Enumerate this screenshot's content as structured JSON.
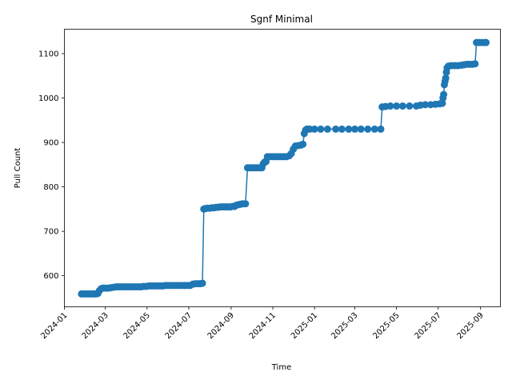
{
  "chart_data": {
    "type": "line",
    "title": "Sgnf Minimal",
    "xlabel": "Time",
    "ylabel": "Pull Count",
    "x_type": "date",
    "xlim": [
      "2024-01-01",
      "2025-09-30"
    ],
    "ylim": [
      530,
      1155
    ],
    "x_ticks": [
      "2024-01",
      "2024-03",
      "2024-05",
      "2024-07",
      "2024-09",
      "2024-11",
      "2025-01",
      "2025-03",
      "2025-05",
      "2025-07",
      "2025-09"
    ],
    "y_ticks": [
      600,
      700,
      800,
      900,
      1000,
      1100
    ],
    "grid": false,
    "legend": "none",
    "markers": true,
    "series": [
      {
        "color": "#1f77b4",
        "points": [
          [
            "2024-01-26",
            559
          ],
          [
            "2024-01-29",
            559
          ],
          [
            "2024-02-01",
            559
          ],
          [
            "2024-02-04",
            559
          ],
          [
            "2024-02-07",
            559
          ],
          [
            "2024-02-10",
            559
          ],
          [
            "2024-02-13",
            559
          ],
          [
            "2024-02-16",
            559
          ],
          [
            "2024-02-19",
            560
          ],
          [
            "2024-02-21",
            566
          ],
          [
            "2024-02-24",
            571
          ],
          [
            "2024-02-27",
            572
          ],
          [
            "2024-03-01",
            572
          ],
          [
            "2024-03-05",
            572
          ],
          [
            "2024-03-09",
            573
          ],
          [
            "2024-03-13",
            574
          ],
          [
            "2024-03-17",
            575
          ],
          [
            "2024-03-21",
            575
          ],
          [
            "2024-03-25",
            575
          ],
          [
            "2024-03-29",
            575
          ],
          [
            "2024-04-02",
            575
          ],
          [
            "2024-04-06",
            575
          ],
          [
            "2024-04-10",
            575
          ],
          [
            "2024-04-14",
            575
          ],
          [
            "2024-04-18",
            575
          ],
          [
            "2024-04-22",
            575
          ],
          [
            "2024-04-26",
            576
          ],
          [
            "2024-04-30",
            576
          ],
          [
            "2024-05-04",
            577
          ],
          [
            "2024-05-08",
            577
          ],
          [
            "2024-05-12",
            577
          ],
          [
            "2024-05-16",
            577
          ],
          [
            "2024-05-20",
            577
          ],
          [
            "2024-05-24",
            577
          ],
          [
            "2024-05-28",
            578
          ],
          [
            "2024-06-01",
            578
          ],
          [
            "2024-06-05",
            578
          ],
          [
            "2024-06-09",
            578
          ],
          [
            "2024-06-13",
            578
          ],
          [
            "2024-06-17",
            578
          ],
          [
            "2024-06-21",
            578
          ],
          [
            "2024-06-25",
            578
          ],
          [
            "2024-06-29",
            578
          ],
          [
            "2024-07-03",
            578
          ],
          [
            "2024-07-07",
            581
          ],
          [
            "2024-07-11",
            582
          ],
          [
            "2024-07-15",
            582
          ],
          [
            "2024-07-18",
            582
          ],
          [
            "2024-07-21",
            583
          ],
          [
            "2024-07-23",
            750
          ],
          [
            "2024-07-25",
            751
          ],
          [
            "2024-07-28",
            752
          ],
          [
            "2024-08-01",
            752
          ],
          [
            "2024-08-04",
            753
          ],
          [
            "2024-08-07",
            753
          ],
          [
            "2024-08-10",
            754
          ],
          [
            "2024-08-13",
            754
          ],
          [
            "2024-08-16",
            755
          ],
          [
            "2024-08-19",
            755
          ],
          [
            "2024-08-22",
            755
          ],
          [
            "2024-08-25",
            755
          ],
          [
            "2024-08-28",
            755
          ],
          [
            "2024-08-31",
            755
          ],
          [
            "2024-09-03",
            756
          ],
          [
            "2024-09-06",
            756
          ],
          [
            "2024-09-09",
            759
          ],
          [
            "2024-09-12",
            760
          ],
          [
            "2024-09-15",
            761
          ],
          [
            "2024-09-18",
            762
          ],
          [
            "2024-09-22",
            762
          ],
          [
            "2024-09-25",
            843
          ],
          [
            "2024-09-28",
            843
          ],
          [
            "2024-10-01",
            843
          ],
          [
            "2024-10-04",
            843
          ],
          [
            "2024-10-07",
            843
          ],
          [
            "2024-10-10",
            843
          ],
          [
            "2024-10-13",
            843
          ],
          [
            "2024-10-16",
            843
          ],
          [
            "2024-10-18",
            852
          ],
          [
            "2024-10-20",
            856
          ],
          [
            "2024-10-22",
            857
          ],
          [
            "2024-10-24",
            868
          ],
          [
            "2024-10-28",
            868
          ],
          [
            "2024-11-01",
            868
          ],
          [
            "2024-11-05",
            868
          ],
          [
            "2024-11-09",
            868
          ],
          [
            "2024-11-13",
            868
          ],
          [
            "2024-11-17",
            868
          ],
          [
            "2024-11-21",
            868
          ],
          [
            "2024-11-25",
            870
          ],
          [
            "2024-11-28",
            875
          ],
          [
            "2024-12-01",
            885
          ],
          [
            "2024-12-04",
            892
          ],
          [
            "2024-12-08",
            893
          ],
          [
            "2024-12-12",
            894
          ],
          [
            "2024-12-15",
            896
          ],
          [
            "2024-12-17",
            920
          ],
          [
            "2024-12-19",
            928
          ],
          [
            "2024-12-21",
            930
          ],
          [
            "2024-12-25",
            930
          ],
          [
            "2025-01-01",
            930
          ],
          [
            "2025-01-10",
            930
          ],
          [
            "2025-01-20",
            930
          ],
          [
            "2025-02-01",
            930
          ],
          [
            "2025-02-10",
            930
          ],
          [
            "2025-02-20",
            930
          ],
          [
            "2025-03-01",
            930
          ],
          [
            "2025-03-10",
            930
          ],
          [
            "2025-03-20",
            930
          ],
          [
            "2025-03-30",
            930
          ],
          [
            "2025-04-08",
            930
          ],
          [
            "2025-04-10",
            980
          ],
          [
            "2025-04-15",
            981
          ],
          [
            "2025-04-22",
            982
          ],
          [
            "2025-05-01",
            982
          ],
          [
            "2025-05-10",
            982
          ],
          [
            "2025-05-20",
            982
          ],
          [
            "2025-05-30",
            982
          ],
          [
            "2025-06-05",
            984
          ],
          [
            "2025-06-12",
            985
          ],
          [
            "2025-06-20",
            985
          ],
          [
            "2025-06-27",
            986
          ],
          [
            "2025-07-03",
            987
          ],
          [
            "2025-07-07",
            988
          ],
          [
            "2025-07-08",
            1000
          ],
          [
            "2025-07-09",
            1008
          ],
          [
            "2025-07-10",
            1030
          ],
          [
            "2025-07-11",
            1038
          ],
          [
            "2025-07-12",
            1045
          ],
          [
            "2025-07-13",
            1058
          ],
          [
            "2025-07-14",
            1068
          ],
          [
            "2025-07-16",
            1072
          ],
          [
            "2025-07-20",
            1073
          ],
          [
            "2025-07-25",
            1073
          ],
          [
            "2025-07-30",
            1073
          ],
          [
            "2025-08-04",
            1074
          ],
          [
            "2025-08-08",
            1075
          ],
          [
            "2025-08-12",
            1076
          ],
          [
            "2025-08-16",
            1076
          ],
          [
            "2025-08-20",
            1076
          ],
          [
            "2025-08-24",
            1077
          ],
          [
            "2025-08-26",
            1125
          ],
          [
            "2025-08-30",
            1125
          ],
          [
            "2025-09-03",
            1125
          ],
          [
            "2025-09-07",
            1125
          ],
          [
            "2025-09-09",
            1125
          ]
        ]
      }
    ]
  }
}
